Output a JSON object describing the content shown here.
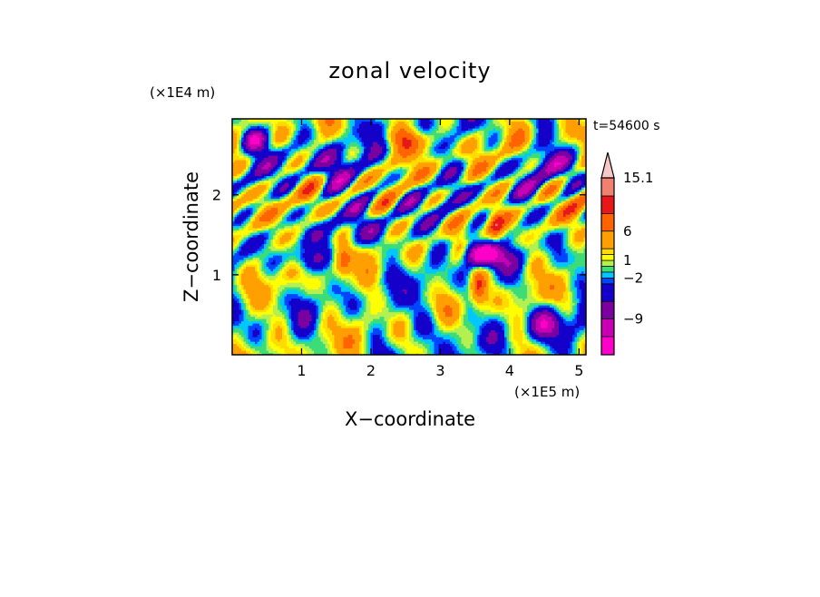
{
  "chart_data": {
    "type": "heatmap",
    "title": "zonal velocity",
    "xlabel": "X−coordinate",
    "ylabel": "Z−coordinate",
    "x_scale_label": "(×1E5 m)",
    "y_scale_label": "(×1E4 m)",
    "time_label": "t=54600 s",
    "x_ticks": [
      1,
      2,
      3,
      4,
      5
    ],
    "y_ticks": [
      1,
      2
    ],
    "xlim": [
      0,
      5.1
    ],
    "ylim": [
      0,
      2.95
    ],
    "colorbar": {
      "levels": [
        -15.1,
        -12,
        -9,
        -6,
        -3,
        -2,
        -1,
        0,
        1,
        2,
        3,
        6,
        9,
        12,
        15.1
      ],
      "colors": [
        "#ff00c8",
        "#c800b4",
        "#7a00a0",
        "#1400c8",
        "#0046ff",
        "#00c8ff",
        "#3cdc78",
        "#b4f050",
        "#ffff00",
        "#ffdc00",
        "#ffa000",
        "#ff6400",
        "#e81818",
        "#f08070",
        "#f8c8c8"
      ],
      "tick_labels": [
        "15.1",
        "6",
        "1",
        "−2",
        "−9"
      ],
      "tick_values": [
        15.1,
        6,
        1,
        -2,
        -9
      ],
      "extend": "max"
    },
    "grid": false,
    "legend": "colorbar-right"
  }
}
